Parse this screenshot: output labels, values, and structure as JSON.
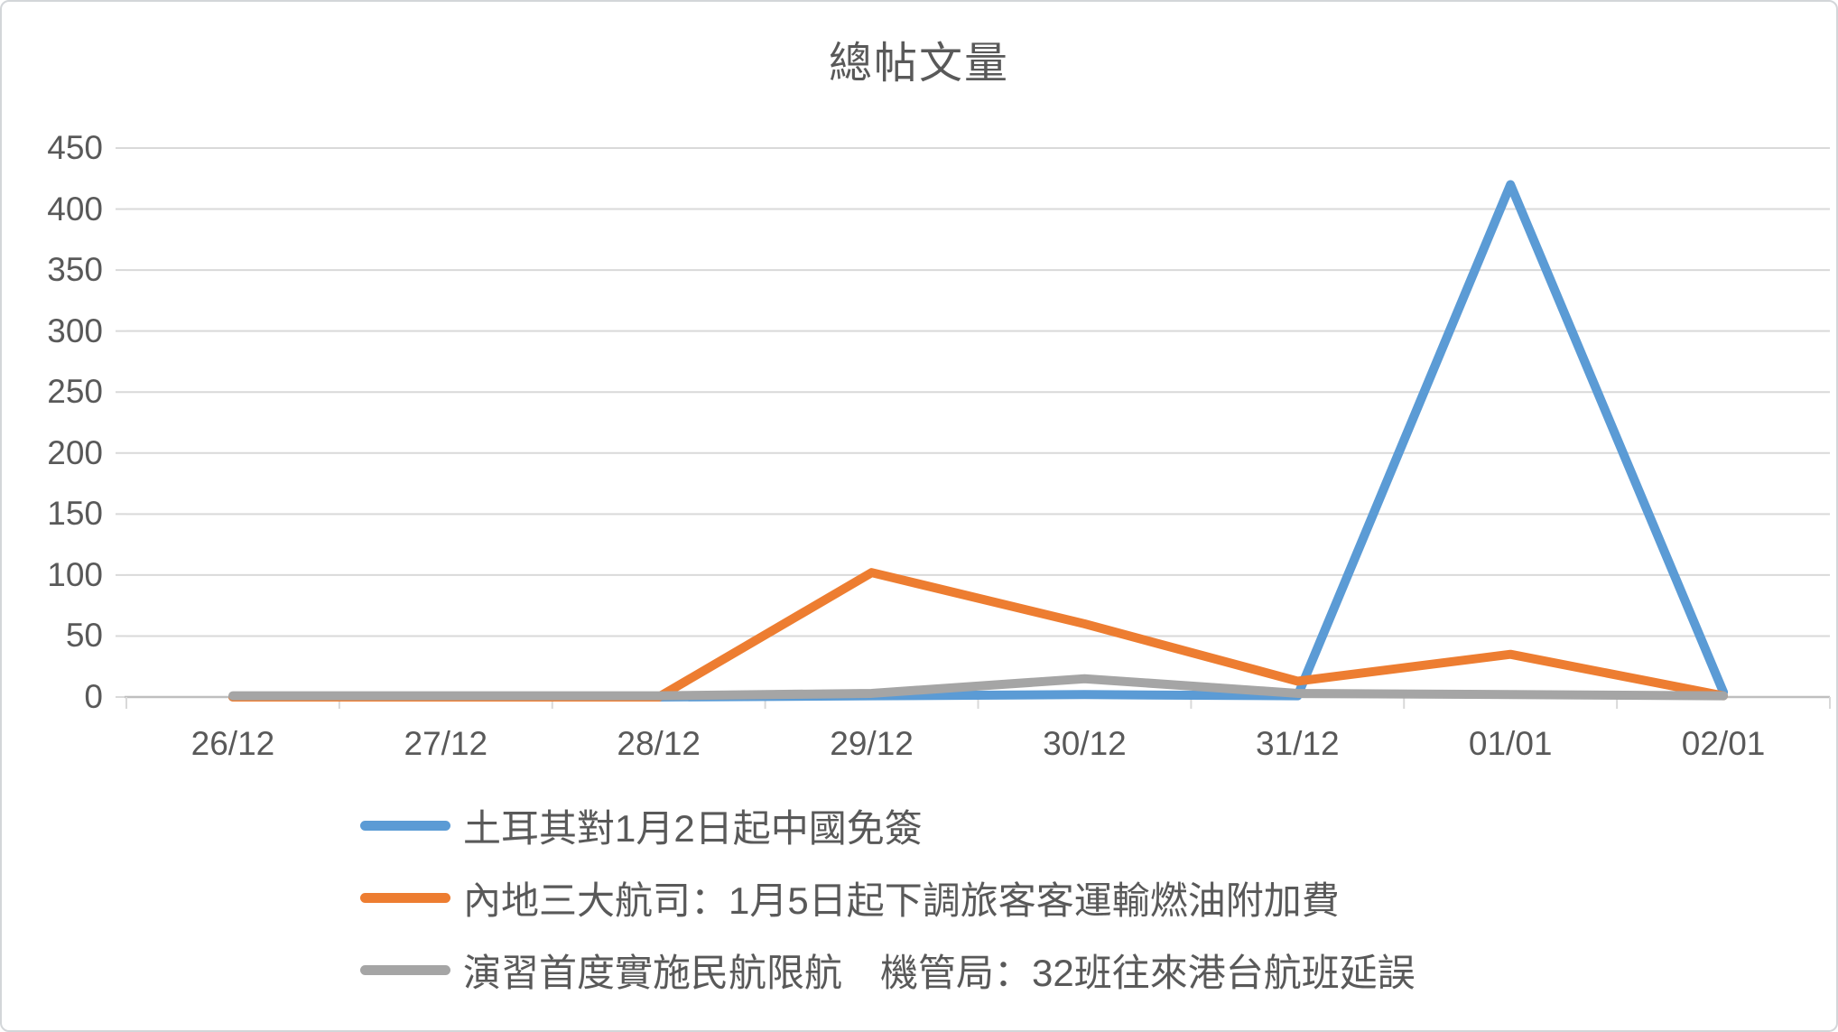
{
  "chart_data": {
    "type": "line",
    "title": "總帖文量",
    "categories": [
      "26/12",
      "27/12",
      "28/12",
      "29/12",
      "30/12",
      "31/12",
      "01/01",
      "02/01"
    ],
    "series": [
      {
        "name": "土耳其對1月2日起中國免簽",
        "color": "#5B9BD5",
        "values": [
          0,
          0,
          0,
          1,
          2,
          1,
          420,
          4
        ]
      },
      {
        "name": "內地三大航司：1月5日起下調旅客客運輸燃油附加費",
        "color": "#ED7D31",
        "values": [
          0,
          0,
          0,
          102,
          60,
          13,
          35,
          1
        ]
      },
      {
        "name": "演習首度實施民航限航　機管局：32班往來港台航班延誤",
        "color": "#A5A5A5",
        "values": [
          1,
          1,
          1,
          3,
          15,
          3,
          2,
          1
        ]
      }
    ],
    "y_ticks": [
      "0",
      "50",
      "100",
      "150",
      "200",
      "250",
      "300",
      "350",
      "400",
      "450"
    ],
    "ylim": [
      0,
      450
    ],
    "ytick_step": 50,
    "grid": true,
    "gridline_color": "#D9D9D9",
    "axis_line_color": "#BFBFBF",
    "label_color": "#595959",
    "legend_position": "bottom-left"
  }
}
